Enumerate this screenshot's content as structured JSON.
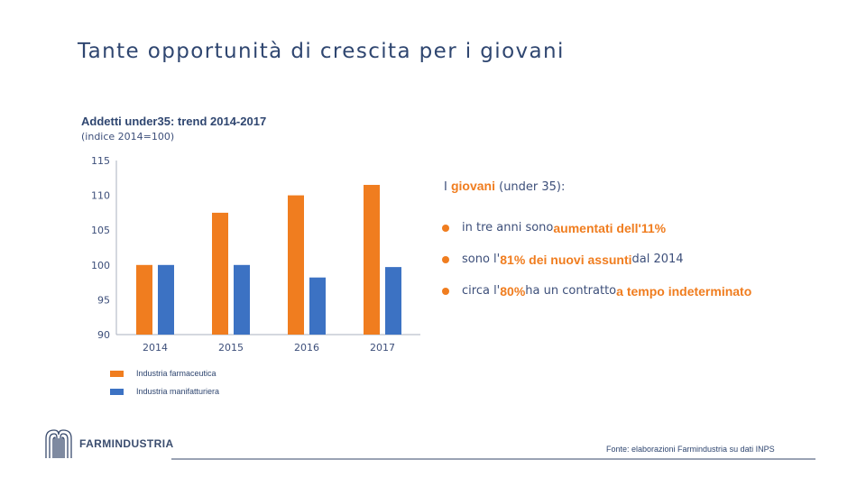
{
  "page": {
    "title": "Tante opportunità di crescita per i giovani"
  },
  "chart_data": {
    "type": "bar",
    "title": "Addetti under35: trend 2014-2017",
    "subtitle": "(indice 2014=100)",
    "categories": [
      "2014",
      "2015",
      "2016",
      "2017"
    ],
    "series": [
      {
        "name": "Industria farmaceutica",
        "color": "#f07d1f",
        "values": [
          100,
          107.5,
          110,
          111.5
        ]
      },
      {
        "name": "Industria manifatturiera",
        "color": "#3c72c3",
        "values": [
          100,
          100,
          98.2,
          99.7
        ]
      }
    ],
    "ylim": [
      90,
      115
    ],
    "yticks": [
      "90",
      "95",
      "100",
      "105",
      "110",
      "115"
    ],
    "grid": false,
    "legend_position": "bottom-left"
  },
  "notes": {
    "intro_prefix": "I ",
    "intro_highlight": "giovani",
    "intro_suffix": " (under 35):",
    "bullets": [
      {
        "prefix": "in tre anni sono ",
        "highlight": "aumentati dell'11%",
        "suffix": ""
      },
      {
        "prefix": "sono l'",
        "highlight": "81% dei nuovi assunti",
        "suffix": " dal 2014"
      },
      {
        "prefix": "circa l'",
        "highlight": "80%",
        "middle": " ha un contratto ",
        "highlight2": "a tempo indeterminato"
      }
    ],
    "accent_color": "#f07d1f"
  },
  "footer": {
    "logo_text": "FARMINDUSTRIA",
    "logo_icon": "farmindustria-logo-icon",
    "source": "Fonte: elaborazioni Farmindustria su dati INPS"
  }
}
